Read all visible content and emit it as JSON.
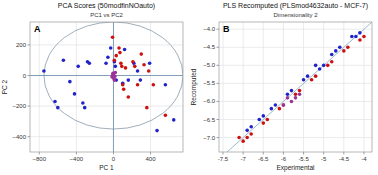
{
  "chart_data": [
    {
      "type": "scatter",
      "title": "PCA Scores (50modfinNOauto)",
      "subtitle": "PC1 vs PC2",
      "x_label": "PC 1",
      "y_label": "PC 2",
      "panel_label": "A",
      "xlim": [
        -900,
        750
      ],
      "ylim": [
        -500,
        350
      ],
      "xticks": [
        {
          "value": -800,
          "label": "−800"
        },
        {
          "value": -400,
          "label": "−400"
        },
        0,
        400
      ],
      "yticks": [
        {
          "value": -400,
          "label": "−400"
        },
        {
          "value": -200,
          "label": "−200"
        },
        0,
        200
      ],
      "grid": true,
      "ellipse": {
        "cx": 0,
        "cy": 0,
        "width": 1500,
        "height": 700,
        "color": "#8899aa"
      },
      "cross": {
        "x": 0,
        "y": 0,
        "color": "#6688aa"
      },
      "series": [
        {
          "color": "#2222cc",
          "x": [
            -750,
            -630,
            -600,
            -540,
            -470,
            -420,
            -380,
            -330,
            -310,
            -280,
            -260,
            -80,
            -60,
            -30,
            10,
            20,
            30,
            100,
            120,
            160,
            220,
            260,
            290,
            390,
            470,
            560,
            650
          ],
          "values": [
            30,
            -170,
            -210,
            100,
            -40,
            -120,
            60,
            -180,
            -210,
            90,
            80,
            80,
            120,
            180,
            90,
            60,
            -30,
            -50,
            170,
            -30,
            80,
            30,
            -30,
            80,
            -360,
            -60,
            -290
          ]
        },
        {
          "color": "#cc1111",
          "x": [
            -10,
            10,
            30,
            60,
            70,
            80,
            90,
            100,
            110,
            130,
            160,
            210,
            230,
            260,
            300,
            330,
            360,
            380,
            430,
            560
          ],
          "values": [
            250,
            100,
            130,
            180,
            150,
            80,
            60,
            -60,
            -90,
            50,
            -140,
            90,
            60,
            -60,
            140,
            70,
            -210,
            30,
            -60,
            -260
          ]
        },
        {
          "color": "#993399",
          "x": [
            0,
            15,
            -10,
            5,
            -5,
            20,
            -15,
            10
          ],
          "values": [
            10,
            -5,
            0,
            -20,
            15,
            20,
            -10,
            -30
          ]
        }
      ]
    },
    {
      "type": "scatter",
      "title": "PLS Recomputed (PLSmod4632auto - MCF-7)",
      "subtitle": "Dimensionality 2",
      "x_label": "Experimental",
      "y_label": "Recomputed",
      "panel_label": "B",
      "xlim": [
        -7.6,
        -3.8
      ],
      "ylim": [
        -7.4,
        -3.8
      ],
      "xticks": [
        -7.5,
        -7,
        -6.5,
        -6,
        -5.5,
        -5,
        -4.5,
        -4
      ],
      "yticks": [
        {
          "value": -7.0,
          "label": "−7.0"
        },
        {
          "value": -6.5,
          "label": "−6.5"
        },
        {
          "value": -6.0,
          "label": "−6.0"
        },
        {
          "value": -5.5,
          "label": "−5.5"
        },
        {
          "value": -5.0,
          "label": "−5.0"
        },
        {
          "value": -4.5,
          "label": "−4.5"
        },
        {
          "value": -4.0,
          "label": "−4.0"
        }
      ],
      "grid": true,
      "diagonal": {
        "x": [
          -7.6,
          -3.8
        ],
        "y": [
          -7.6,
          -3.8
        ],
        "color": "#99bbcc"
      },
      "series": [
        {
          "color": "#2222cc",
          "x": [
            -4.1,
            -4.2,
            -4.3,
            -4.6,
            -4.7,
            -4.8,
            -5.0,
            -5.1,
            -5.2,
            -5.4,
            -5.5,
            -5.8,
            -5.9,
            -6.2,
            -6.3,
            -6.5,
            -6.6,
            -6.8,
            -6.9
          ],
          "values": [
            -4.1,
            -4.2,
            -4.2,
            -4.5,
            -4.6,
            -4.7,
            -5.0,
            -5.1,
            -5.0,
            -5.3,
            -5.4,
            -5.7,
            -5.8,
            -6.1,
            -6.2,
            -6.4,
            -6.5,
            -6.7,
            -6.8
          ]
        },
        {
          "color": "#cc1111",
          "x": [
            -4.0,
            -4.1,
            -4.4,
            -4.5,
            -4.8,
            -4.9,
            -5.2,
            -5.3,
            -5.6,
            -5.7,
            -6.0,
            -6.1,
            -6.4,
            -6.5,
            -6.8,
            -6.9,
            -7.0,
            -7.1
          ],
          "values": [
            -4.2,
            -4.3,
            -4.5,
            -4.6,
            -4.9,
            -5.0,
            -5.3,
            -5.4,
            -5.7,
            -5.8,
            -6.1,
            -6.2,
            -6.5,
            -6.6,
            -6.9,
            -7.0,
            -7.1,
            -7.0
          ]
        },
        {
          "color": "#993399",
          "x": [
            -5.6,
            -5.7,
            -5.8,
            -5.9,
            -6.0
          ],
          "values": [
            -5.8,
            -5.9,
            -6.0,
            -5.9,
            -6.1
          ]
        }
      ]
    }
  ]
}
